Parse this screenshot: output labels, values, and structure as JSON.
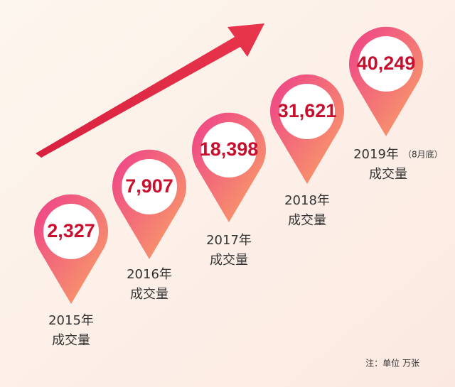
{
  "items": [
    {
      "value": "2,327",
      "year": "2015年",
      "label": "成交量"
    },
    {
      "value": "7,907",
      "year": "2016年",
      "label": "成交量"
    },
    {
      "value": "18,398",
      "year": "2017年",
      "label": "成交量"
    },
    {
      "value": "31,621",
      "year": "2018年",
      "label": "成交量"
    },
    {
      "value": "40,249",
      "year": "2019年",
      "label": "成交量",
      "note": "（8月底）"
    }
  ],
  "footnote": "注：单位 万张"
}
